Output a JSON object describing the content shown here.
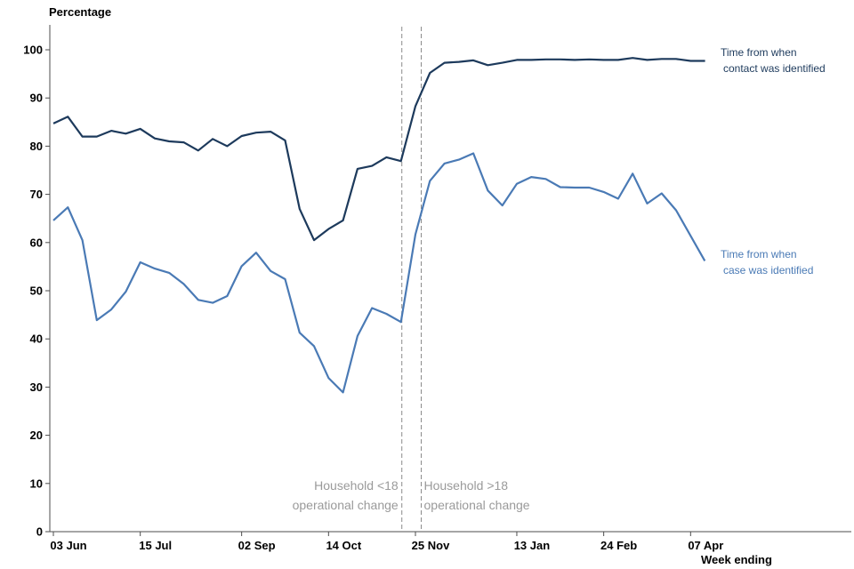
{
  "chart_data": {
    "type": "line",
    "ylabel": "Percentage",
    "xlabel": "Week ending",
    "ylim": [
      0,
      105
    ],
    "yticks": [
      0,
      10,
      20,
      30,
      40,
      50,
      60,
      70,
      80,
      90,
      100
    ],
    "x_ticks": [
      {
        "week": 1,
        "label": "03 Jun"
      },
      {
        "week": 7,
        "label": "15 Jul"
      },
      {
        "week": 14,
        "label": "02 Sep"
      },
      {
        "week": 20,
        "label": "14 Oct"
      },
      {
        "week": 26,
        "label": "25 Nov"
      },
      {
        "week": 33,
        "label": "13 Jan"
      },
      {
        "week": 39,
        "label": "24 Feb"
      },
      {
        "week": 45,
        "label": "07 Apr"
      }
    ],
    "x_range": [
      0,
      54
    ],
    "grid": false,
    "legend": "none",
    "series": [
      {
        "name": "Time from when contact was identified",
        "label_lines": [
          "Time from when",
          "contact was identified"
        ],
        "color": "#1d3a5c",
        "weeks": [
          1,
          2,
          3,
          4,
          5,
          6,
          7,
          8,
          9,
          10,
          11,
          12,
          13,
          14,
          15,
          16,
          17,
          18,
          19,
          20,
          21,
          22,
          23,
          24,
          25,
          26,
          27,
          28,
          29,
          30,
          31,
          32,
          33,
          34,
          35,
          36,
          37,
          38,
          39,
          40,
          41,
          42,
          43,
          44,
          45,
          46
        ],
        "values": [
          84.7,
          86.1,
          82.0,
          82.0,
          83.2,
          82.6,
          83.6,
          81.6,
          81.0,
          80.8,
          79.1,
          81.5,
          80.0,
          82.1,
          82.8,
          83.0,
          81.2,
          67.0,
          60.5,
          62.8,
          64.6,
          75.3,
          75.9,
          77.7,
          76.9,
          88.3,
          95.2,
          97.3,
          97.5,
          97.8,
          96.8,
          97.3,
          97.9,
          97.9,
          98.0,
          98.0,
          97.9,
          98.0,
          97.9,
          97.9,
          98.3,
          97.9,
          98.1,
          98.1,
          97.7,
          null
        ],
        "end_label_week": 46
      },
      {
        "name": "Time from when case was identified",
        "label_lines": [
          "Time from when",
          "case was identified"
        ],
        "color": "#4a7ab5",
        "weeks": [
          1,
          2,
          3,
          4,
          5,
          6,
          7,
          8,
          9,
          10,
          11,
          12,
          13,
          14,
          15,
          16,
          17,
          18,
          19,
          20,
          21,
          22,
          23,
          24,
          25,
          26,
          27,
          28,
          29,
          30,
          31,
          32,
          33,
          34,
          35,
          36,
          37,
          38,
          39,
          40,
          41,
          42,
          43,
          44,
          45,
          46
        ],
        "values": [
          64.6,
          67.3,
          60.5,
          43.9,
          46.1,
          49.8,
          55.9,
          54.6,
          53.7,
          51.4,
          48.1,
          47.5,
          48.9,
          55.1,
          57.9,
          54.1,
          52.4,
          41.3,
          38.5,
          31.9,
          28.9,
          40.6,
          46.4,
          45.2,
          43.5,
          61.7,
          72.8,
          76.4,
          77.2,
          78.5,
          70.8,
          67.7,
          72.2,
          73.6,
          73.2,
          71.5,
          71.4,
          71.4,
          70.5,
          69.1,
          74.3,
          68.1,
          70.2,
          66.7,
          null,
          null
        ],
        "end_value_week": 45,
        "end_value": 56.2
      }
    ],
    "annotations": [
      {
        "week": 25,
        "lines": [
          "Household <18",
          "operational change"
        ],
        "align": "right"
      },
      {
        "week": 26.4,
        "lines": [
          "Household >18",
          "operational change"
        ],
        "align": "left"
      }
    ]
  }
}
